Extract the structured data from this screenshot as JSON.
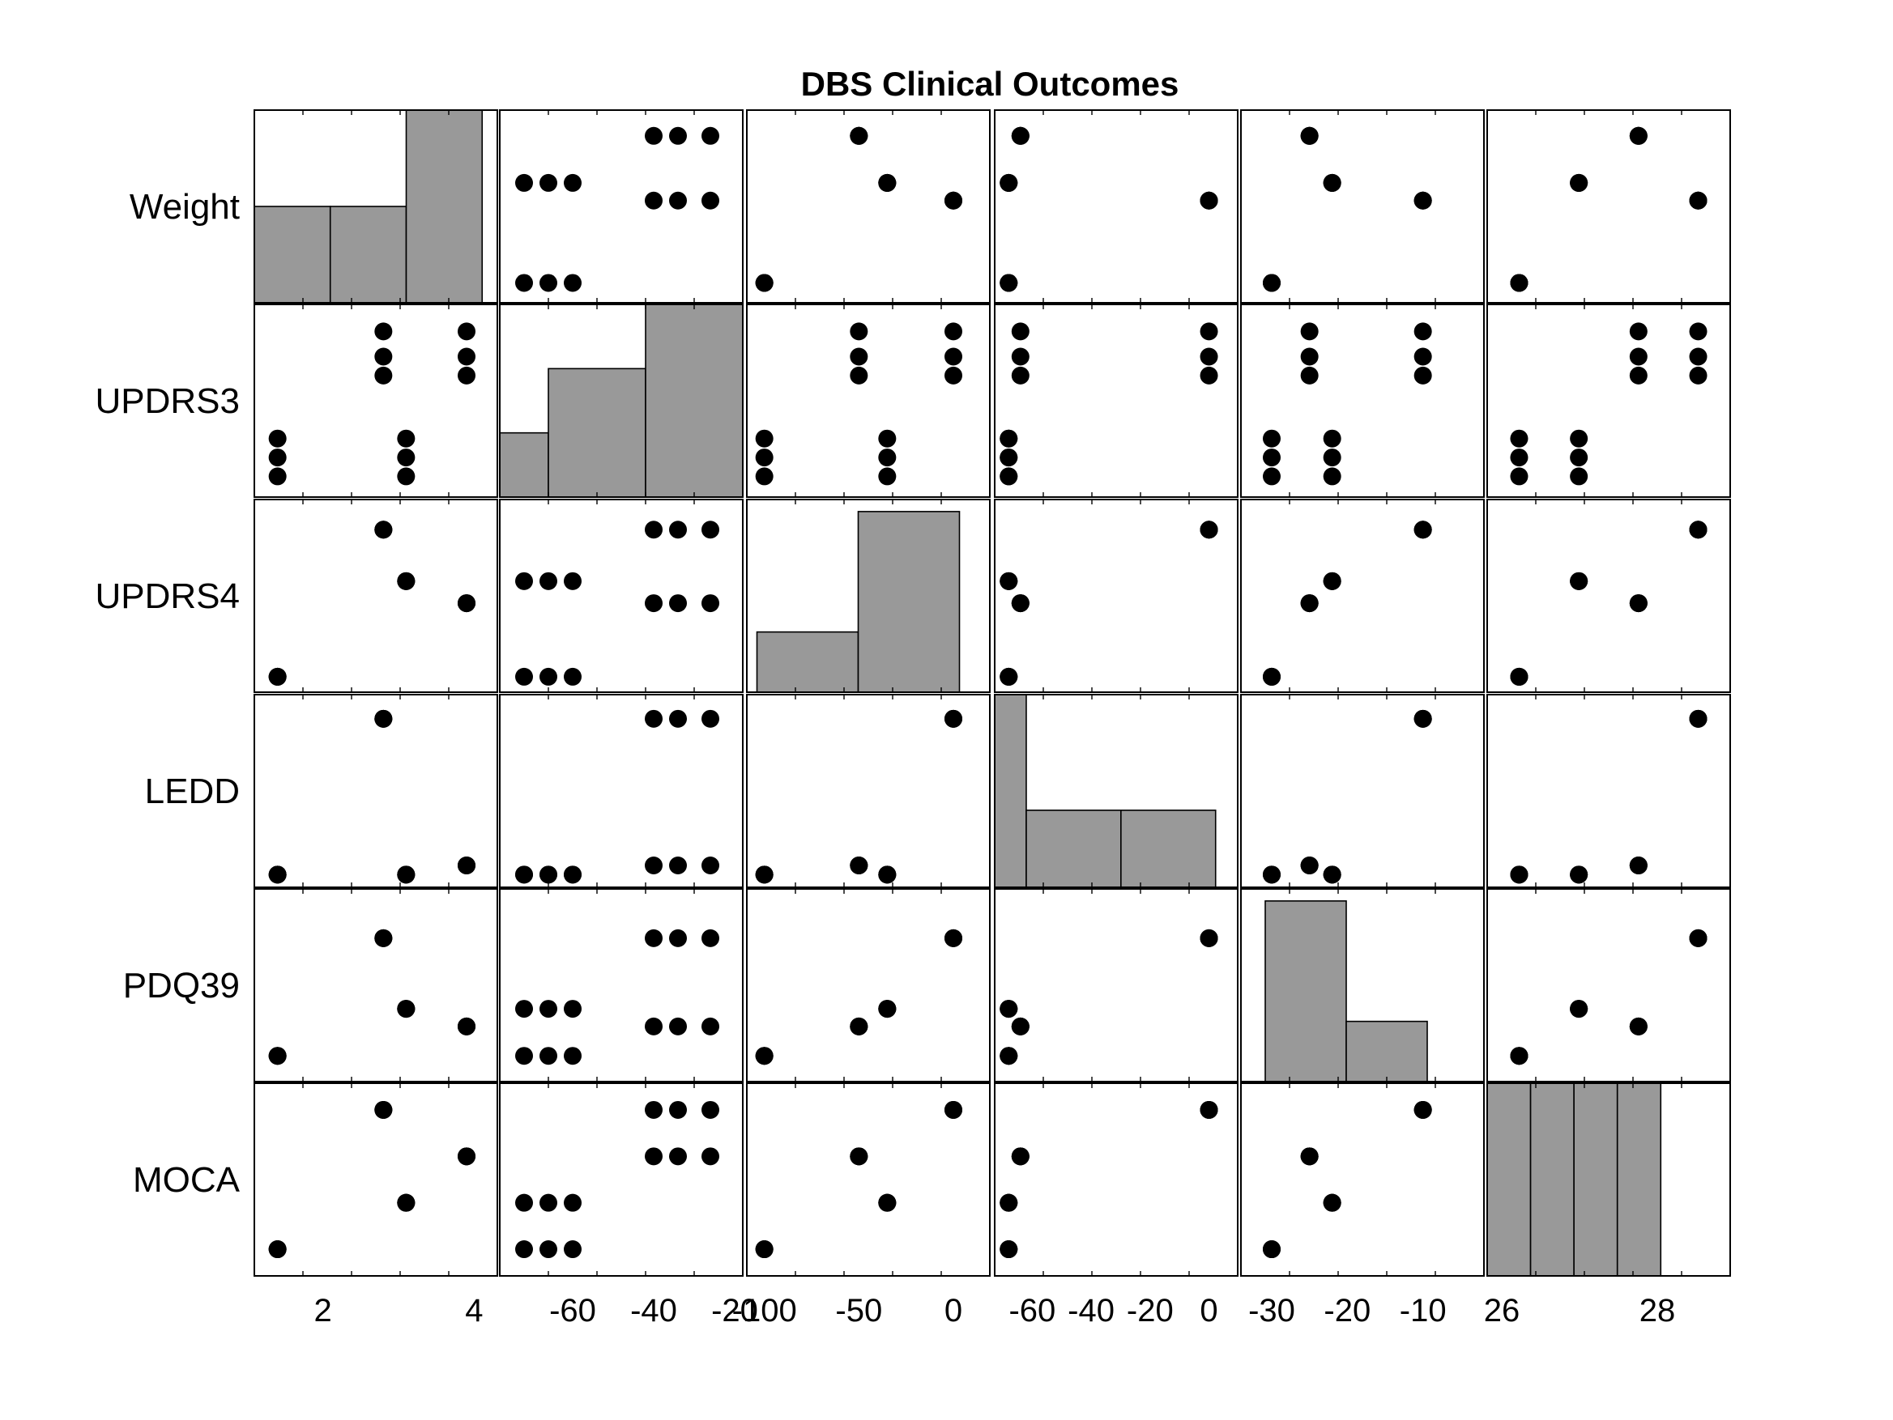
{
  "chart_data": {
    "type": "scatter",
    "subtype": "scatter-matrix",
    "title": "DBS Clinical Outcomes",
    "variables": [
      "Weight",
      "UPDRS3",
      "UPDRS4",
      "LEDD",
      "PDQ39",
      "MOCA"
    ],
    "observations": [
      {
        "Weight": 1.4,
        "UPDRS3": -72,
        "UPDRS4": -100,
        "LEDD": -68,
        "PDQ39": -30,
        "MOCA": 26
      },
      {
        "Weight": 1.4,
        "UPDRS3": -66,
        "UPDRS4": -100,
        "LEDD": -68,
        "PDQ39": -30,
        "MOCA": 26
      },
      {
        "Weight": 1.4,
        "UPDRS3": -60,
        "UPDRS4": -100,
        "LEDD": -68,
        "PDQ39": -30,
        "MOCA": 26
      },
      {
        "Weight": 2.8,
        "UPDRS3": -40,
        "UPDRS4": 0,
        "LEDD": 0,
        "PDQ39": -10,
        "MOCA": 29
      },
      {
        "Weight": 2.8,
        "UPDRS3": -34,
        "UPDRS4": 0,
        "LEDD": 0,
        "PDQ39": -10,
        "MOCA": 29
      },
      {
        "Weight": 2.8,
        "UPDRS3": -26,
        "UPDRS4": 0,
        "LEDD": 0,
        "PDQ39": -10,
        "MOCA": 29
      },
      {
        "Weight": 3.1,
        "UPDRS3": -72,
        "UPDRS4": -35,
        "LEDD": -68,
        "PDQ39": -22,
        "MOCA": 27
      },
      {
        "Weight": 3.1,
        "UPDRS3": -66,
        "UPDRS4": -35,
        "LEDD": -68,
        "PDQ39": -22,
        "MOCA": 27
      },
      {
        "Weight": 3.1,
        "UPDRS3": -60,
        "UPDRS4": -35,
        "LEDD": -68,
        "PDQ39": -22,
        "MOCA": 27
      },
      {
        "Weight": 3.9,
        "UPDRS3": -40,
        "UPDRS4": -50,
        "LEDD": -64,
        "PDQ39": -25,
        "MOCA": 28
      },
      {
        "Weight": 3.9,
        "UPDRS3": -34,
        "UPDRS4": -50,
        "LEDD": -64,
        "PDQ39": -25,
        "MOCA": 28
      },
      {
        "Weight": 3.9,
        "UPDRS3": -26,
        "UPDRS4": -50,
        "LEDD": -64,
        "PDQ39": -25,
        "MOCA": 28
      }
    ],
    "histograms": {
      "Weight": {
        "edges": [
          1,
          2,
          3,
          4
        ],
        "counts": [
          2,
          2,
          4
        ],
        "xlim": [
          1,
          4.2
        ],
        "ylim": [
          0,
          4
        ]
      },
      "UPDRS3": {
        "edges": [
          -70,
          -60,
          -40,
          -20
        ],
        "counts": [
          1,
          2,
          3
        ],
        "xlim": [
          -70,
          -20
        ],
        "ylim": [
          0,
          3
        ]
      },
      "UPDRS4": {
        "edges": [
          -100,
          -50,
          0
        ],
        "counts": [
          1,
          3
        ],
        "xlim": [
          -105,
          15
        ],
        "ylim": [
          0,
          3.2
        ]
      },
      "LEDD": {
        "edges": [
          -70,
          -60,
          -30,
          0
        ],
        "counts": [
          5,
          2,
          2
        ],
        "xlim": [
          -70,
          7
        ],
        "ylim": [
          0,
          5
        ]
      },
      "PDQ39": {
        "edges": [
          -30,
          -20,
          -10
        ],
        "counts": [
          3,
          1
        ],
        "xlim": [
          -33,
          -3
        ],
        "ylim": [
          0,
          3.2
        ]
      },
      "MOCA": {
        "edges": [
          26,
          26.5,
          27,
          27.5,
          28
        ],
        "counts": [
          1,
          1,
          1,
          1
        ],
        "xlim": [
          26,
          28.8
        ],
        "ylim": [
          0,
          1
        ]
      }
    },
    "axis_ranges": {
      "Weight": [
        1.2,
        4.2
      ],
      "UPDRS3": [
        -76,
        -20
      ],
      "UPDRS4": [
        -105,
        15
      ],
      "LEDD": [
        -70,
        7
      ],
      "PDQ39": [
        -33,
        -3
      ],
      "MOCA": [
        25.6,
        29.4
      ]
    },
    "x_ticks": {
      "Weight": [
        "2",
        "4"
      ],
      "UPDRS3": [
        "-60",
        "-40",
        "-20"
      ],
      "UPDRS4": [
        "-100",
        "-50",
        "0"
      ],
      "LEDD": [
        "-60",
        "-40",
        "-20",
        "0"
      ],
      "PDQ39": [
        "-30",
        "-20",
        "-10"
      ],
      "MOCA": [
        "26",
        "28"
      ]
    },
    "grid": false,
    "legend": "none"
  }
}
